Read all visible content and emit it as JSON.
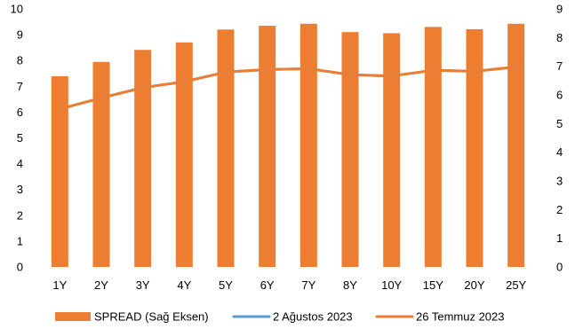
{
  "chart_data": {
    "type": "bar",
    "categories": [
      "1Y",
      "2Y",
      "3Y",
      "4Y",
      "5Y",
      "6Y",
      "7Y",
      "8Y",
      "10Y",
      "15Y",
      "20Y",
      "25Y"
    ],
    "series": [
      {
        "name": "SPREAD (Sağ Eksen)",
        "type": "bar",
        "axis": "right",
        "color": "#ED7D31",
        "values": [
          6.65,
          7.15,
          7.57,
          7.83,
          8.28,
          8.41,
          8.48,
          8.19,
          8.15,
          8.37,
          8.29,
          8.48
        ]
      },
      {
        "name": "2 Ağustos 2023",
        "type": "line",
        "axis": "left",
        "color": "#5B9BD5",
        "values": [
          6.12,
          6.55,
          6.95,
          7.18,
          7.55,
          7.65,
          7.68,
          7.45,
          7.4,
          7.62,
          7.58,
          7.75
        ]
      },
      {
        "name": "26 Temmuz 2023",
        "type": "line",
        "axis": "left",
        "color": "#ED7D31",
        "values": [
          6.12,
          6.55,
          6.95,
          7.18,
          7.55,
          7.65,
          7.68,
          7.45,
          7.4,
          7.62,
          7.58,
          7.75
        ]
      }
    ],
    "left_axis": {
      "ylim": [
        0,
        10
      ],
      "ticks": [
        "0",
        "1",
        "2",
        "3",
        "4",
        "5",
        "6",
        "7",
        "8",
        "9",
        "10"
      ]
    },
    "right_axis": {
      "ylim": [
        0,
        9
      ],
      "ticks": [
        "0",
        "1",
        "2",
        "3",
        "4",
        "5",
        "6",
        "7",
        "8",
        "9"
      ]
    },
    "grid": false,
    "legend_position": "bottom"
  }
}
